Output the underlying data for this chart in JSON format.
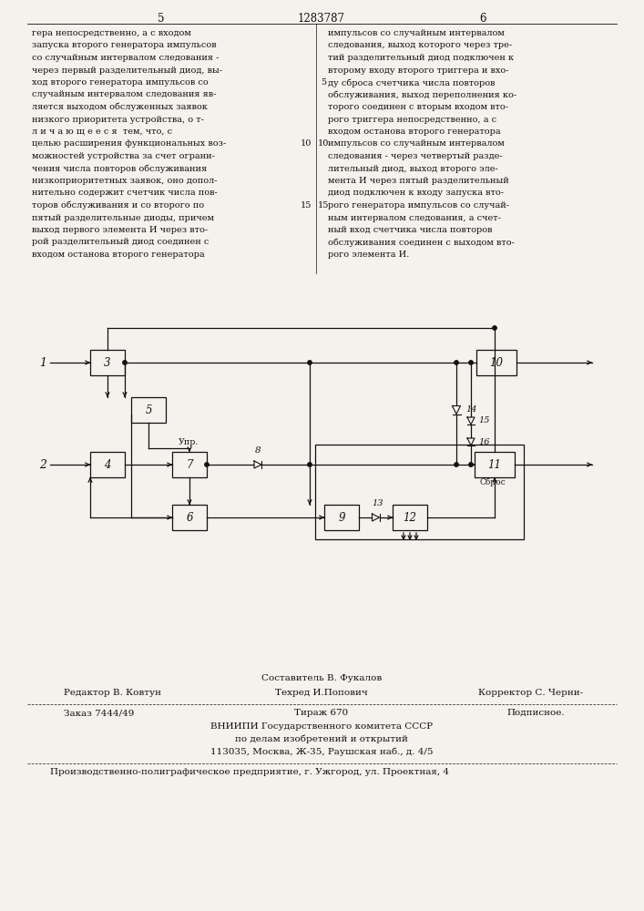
{
  "page_number_left": "5",
  "page_number_center": "1283787",
  "page_number_right": "6",
  "text_left": [
    "гера непосредственно, а с входом",
    "запуска второго генератора импульсов",
    "со случайным интервалом следования -",
    "через первый разделительный диод, вы-",
    "ход второго генератора импульсов со",
    "случайным интервалом следования яв-",
    "ляется выходом обслуженных заявок",
    "низкого приоритета устройства, о т-",
    "л и ч а ю щ е е с я  тем, что, с",
    "целью расширения функциональных воз-",
    "можностей устройства за счет ограни-",
    "чения числа повторов обслуживания",
    "низкоприоритетных заявок, оно допол-",
    "нительно содержит счетчик числа пов-",
    "торов обслуживания и со второго по",
    "пятый разделительные диоды, причем",
    "выход первого элемента И через вто-",
    "рой разделительный диод соединен с",
    "входом останова второго генератора"
  ],
  "text_right": [
    "импульсов со случайным интервалом",
    "следования, выход которого через тре-",
    "тий разделительный диод подключен к",
    "второму входу второго триггера и вхо-",
    "ду сброса счетчика числа повторов",
    "обслуживания, выход переполнения ко-",
    "торого соединен с вторым входом вто-",
    "рого триггера непосредственно, а с",
    "входом останова второго генератора",
    "импульсов со случайным интервалом",
    "следования - через четвертый разде-",
    "лительный диод, выход второго эле-",
    "мента И через пятый разделительный",
    "диод подключен к входу запуска вто-",
    "рого генератора импульсов со случай-",
    "ным интервалом следования, а счет-",
    "ный вход счетчика числа повторов",
    "обслуживания соединен с выходом вто-",
    "рого элемента И."
  ],
  "footer_sestavitel": "Составитель В. Фукалов",
  "footer_redaktor": "Редактор В. Ковтун",
  "footer_tehred": "Техред И.Попович",
  "footer_korrektor": "Корректор С. Черни-",
  "footer_zakaz": "Заказ 7444/49",
  "footer_tirazh": "Тираж 670",
  "footer_podpisnoe": "Подписное.",
  "footer_vniipи": "ВНИИПИ Государственного комитета СССР",
  "footer_delam": "по делам изобретений и открытий",
  "footer_address": "113035, Москва, Ж-35, Раушская наб., д. 4/5",
  "footer_predpriyatie": "Производственно-полиграфическое предприятие, г. Ужгород, ул. Проектная, 4",
  "bg_color": "#f5f2ed",
  "text_color": "#111111"
}
